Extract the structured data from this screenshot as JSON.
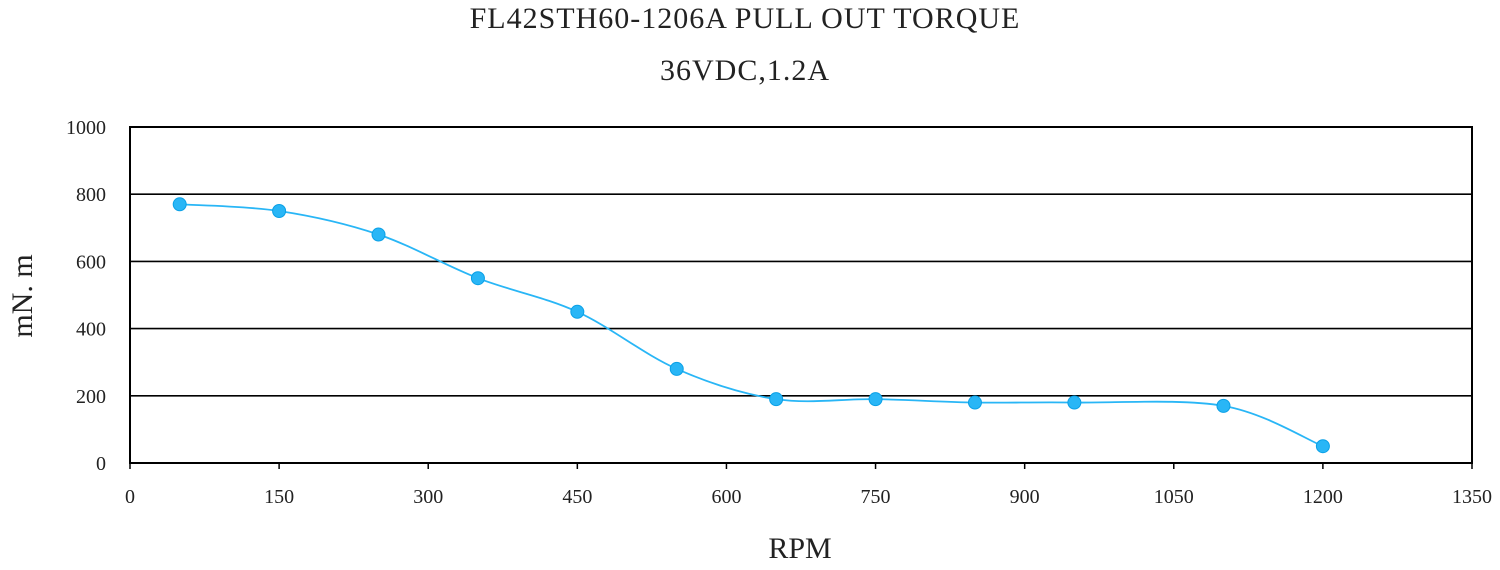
{
  "chart_data": {
    "type": "line",
    "title": "FL42STH60-1206A PULL OUT TORQUE",
    "subtitle": "36VDC,1.2A",
    "xlabel": "RPM",
    "ylabel": "mN. m",
    "xlim": [
      0,
      1350
    ],
    "ylim": [
      0,
      1000
    ],
    "xticks": [
      0,
      150,
      300,
      450,
      600,
      750,
      900,
      1050,
      1200,
      1350
    ],
    "yticks": [
      0,
      200,
      400,
      600,
      800,
      1000
    ],
    "grid": "horizontal",
    "legend": "none",
    "series": [
      {
        "color": "#29b6f6",
        "x": [
          50,
          150,
          250,
          350,
          450,
          550,
          650,
          750,
          850,
          950,
          1100,
          1200
        ],
        "y": [
          770,
          750,
          680,
          550,
          450,
          280,
          190,
          190,
          180,
          180,
          170,
          50
        ]
      }
    ]
  }
}
